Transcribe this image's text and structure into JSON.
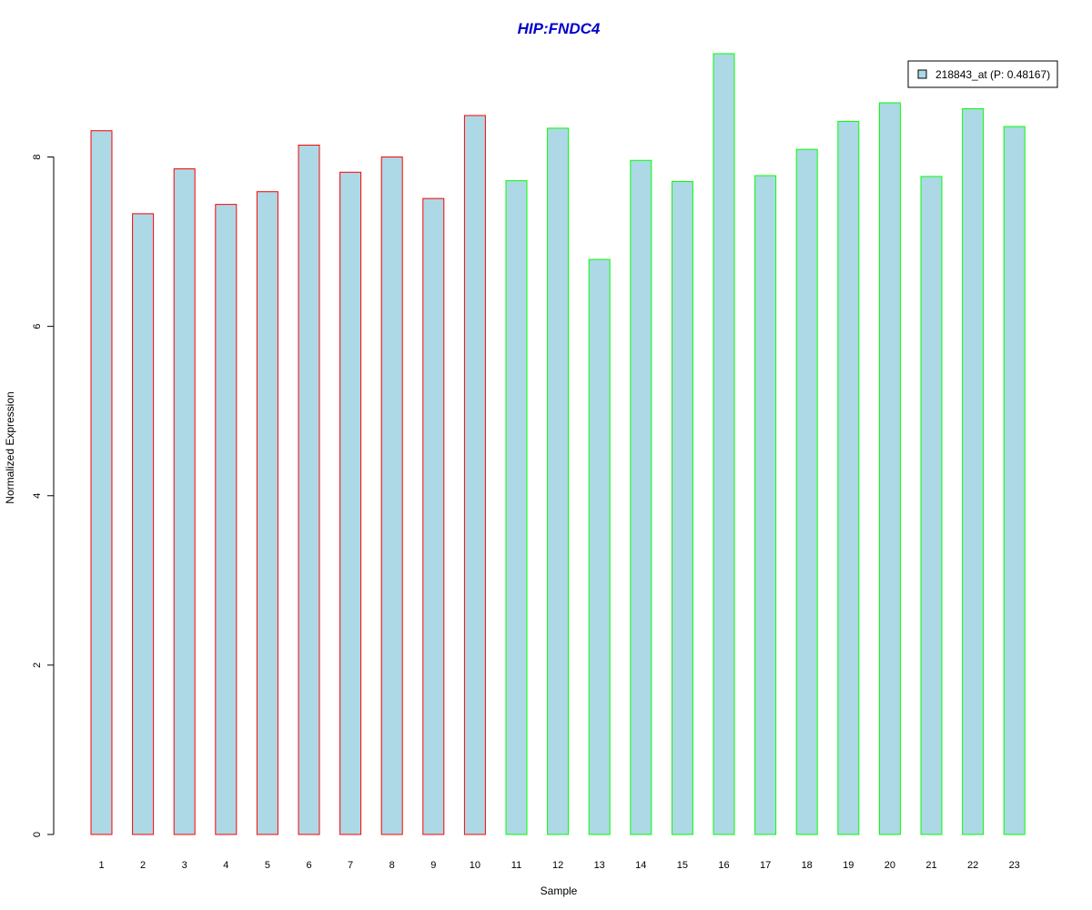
{
  "chart_data": {
    "type": "bar",
    "title": "HIP:FNDC4",
    "xlabel": "Sample",
    "ylabel": "Normalized Expression",
    "categories": [
      "1",
      "2",
      "3",
      "4",
      "5",
      "6",
      "7",
      "8",
      "9",
      "10",
      "11",
      "12",
      "13",
      "14",
      "15",
      "16",
      "17",
      "18",
      "19",
      "20",
      "21",
      "22",
      "23"
    ],
    "series": [
      {
        "name": "218843_at (P: 0.48167)",
        "values": [
          8.31,
          7.33,
          7.86,
          7.44,
          7.59,
          8.14,
          7.82,
          8.0,
          7.51,
          8.49,
          7.72,
          8.34,
          6.79,
          7.96,
          7.71,
          9.22,
          7.78,
          8.09,
          8.42,
          8.64,
          7.77,
          8.57,
          8.36
        ]
      }
    ],
    "ylim": [
      0,
      9.22
    ],
    "yticks": [
      0,
      2,
      4,
      6,
      8
    ],
    "grid": false,
    "legend": "top-right",
    "colors": {
      "fill": "#add8e6",
      "group1_border": "#ff0000",
      "group2_border": "#00ff00",
      "title": "#0000cd"
    },
    "bar_border_groups": [
      "group1",
      "group1",
      "group1",
      "group1",
      "group1",
      "group1",
      "group1",
      "group1",
      "group1",
      "group1",
      "group2",
      "group2",
      "group2",
      "group2",
      "group2",
      "group2",
      "group2",
      "group2",
      "group2",
      "group2",
      "group2",
      "group2",
      "group2"
    ]
  }
}
